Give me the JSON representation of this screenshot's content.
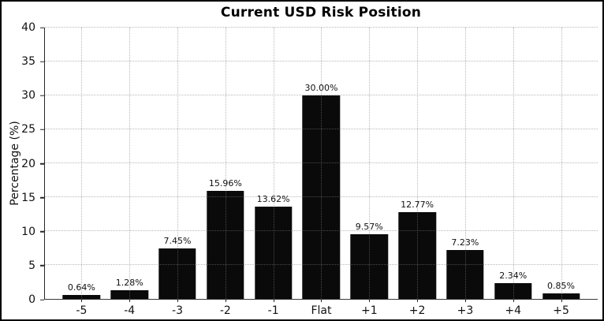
{
  "chart_data": {
    "type": "bar",
    "title": "Current USD Risk Position",
    "ylabel": "Percentage (%)",
    "xlabel": "",
    "categories": [
      "-5",
      "-4",
      "-3",
      "-2",
      "-1",
      "Flat",
      "+1",
      "+2",
      "+3",
      "+4",
      "+5"
    ],
    "values": [
      0.64,
      1.28,
      7.45,
      15.96,
      13.62,
      30.0,
      9.57,
      12.77,
      7.23,
      2.34,
      0.85
    ],
    "bar_labels": [
      "0.64%",
      "1.28%",
      "7.45%",
      "15.96%",
      "13.62%",
      "30.00%",
      "9.57%",
      "12.77%",
      "7.23%",
      "2.34%",
      "0.85%"
    ],
    "ylim": [
      0,
      40
    ],
    "yticks": [
      0,
      5,
      10,
      15,
      20,
      25,
      30,
      35,
      40
    ],
    "grid": true,
    "grid_style": "dotted",
    "legend_position": "none",
    "bar_color": "#0a0a0a",
    "grid_color": "#b0b0b0",
    "background_color": "#ffffff",
    "frame_color": "#000000"
  }
}
